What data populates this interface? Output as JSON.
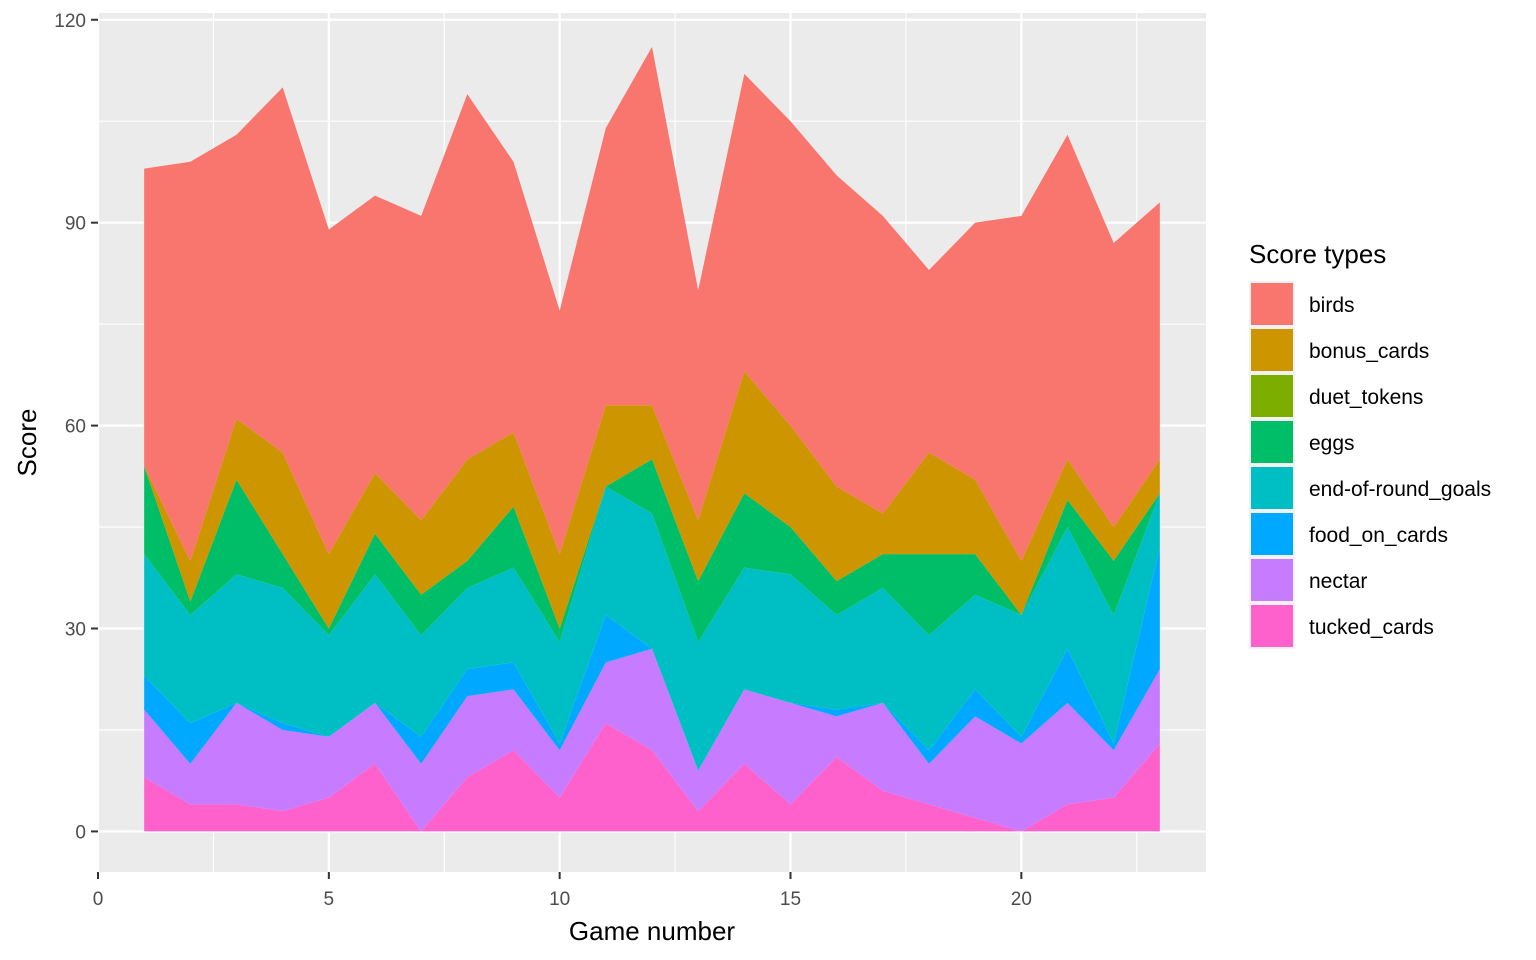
{
  "chart_data": {
    "type": "area",
    "stacked": true,
    "x": [
      1,
      2,
      3,
      4,
      5,
      6,
      7,
      8,
      9,
      10,
      11,
      12,
      13,
      14,
      15,
      16,
      17,
      18,
      19,
      20,
      21,
      22,
      23
    ],
    "xlabel": "Game number",
    "ylabel": "Score",
    "xlim": [
      0,
      24
    ],
    "ylim": [
      -6,
      121
    ],
    "x_ticks": [
      0,
      5,
      10,
      15,
      20
    ],
    "y_ticks": [
      0,
      30,
      60,
      90,
      120
    ],
    "legend_title": "Score types",
    "legend_position": "right",
    "grid": true,
    "series": [
      {
        "name": "tucked_cards",
        "color": "#FF61CC",
        "values": [
          8,
          4,
          4,
          3,
          5,
          10,
          0,
          8,
          12,
          5,
          16,
          12,
          3,
          10,
          4,
          11,
          6,
          4,
          2,
          0,
          4,
          5,
          13
        ]
      },
      {
        "name": "nectar",
        "color": "#C77CFF",
        "values": [
          10,
          6,
          15,
          12,
          9,
          9,
          10,
          12,
          9,
          7,
          9,
          15,
          6,
          11,
          15,
          6,
          13,
          6,
          15,
          13,
          15,
          7,
          11
        ]
      },
      {
        "name": "food_on_cards",
        "color": "#00A9FF",
        "values": [
          5,
          6,
          0,
          1,
          0,
          0,
          4,
          4,
          4,
          1,
          7,
          0,
          0,
          0,
          0,
          1,
          0,
          2,
          4,
          1,
          8,
          1,
          18
        ]
      },
      {
        "name": "end-of-round_goals",
        "color": "#00BFC4",
        "values": [
          18,
          16,
          19,
          20,
          15,
          19,
          15,
          12,
          14,
          15,
          19,
          20,
          19,
          18,
          19,
          14,
          17,
          17,
          14,
          18,
          18,
          19,
          8
        ]
      },
      {
        "name": "eggs",
        "color": "#00BE67",
        "values": [
          13,
          2,
          14,
          5,
          1,
          6,
          6,
          4,
          9,
          2,
          0,
          8,
          9,
          11,
          7,
          5,
          5,
          12,
          6,
          0,
          4,
          8,
          0
        ]
      },
      {
        "name": "duet_tokens",
        "color": "#7CAE00",
        "values": [
          0,
          0,
          0,
          0,
          0,
          0,
          0,
          0,
          0,
          0,
          0,
          0,
          0,
          0,
          0,
          0,
          0,
          0,
          0,
          0,
          0,
          0,
          0
        ]
      },
      {
        "name": "bonus_cards",
        "color": "#CD9600",
        "values": [
          0,
          6,
          9,
          15,
          11,
          9,
          11,
          15,
          11,
          11,
          12,
          8,
          9,
          18,
          15,
          14,
          6,
          15,
          11,
          8,
          6,
          5,
          5
        ]
      },
      {
        "name": "birds",
        "color": "#F8766D",
        "values": [
          44,
          59,
          42,
          54,
          48,
          41,
          45,
          54,
          40,
          36,
          41,
          53,
          34,
          44,
          45,
          46,
          44,
          27,
          38,
          51,
          48,
          42,
          38
        ]
      }
    ],
    "legend_order": [
      "birds",
      "bonus_cards",
      "duet_tokens",
      "eggs",
      "end-of-round_goals",
      "food_on_cards",
      "nectar",
      "tucked_cards"
    ]
  }
}
